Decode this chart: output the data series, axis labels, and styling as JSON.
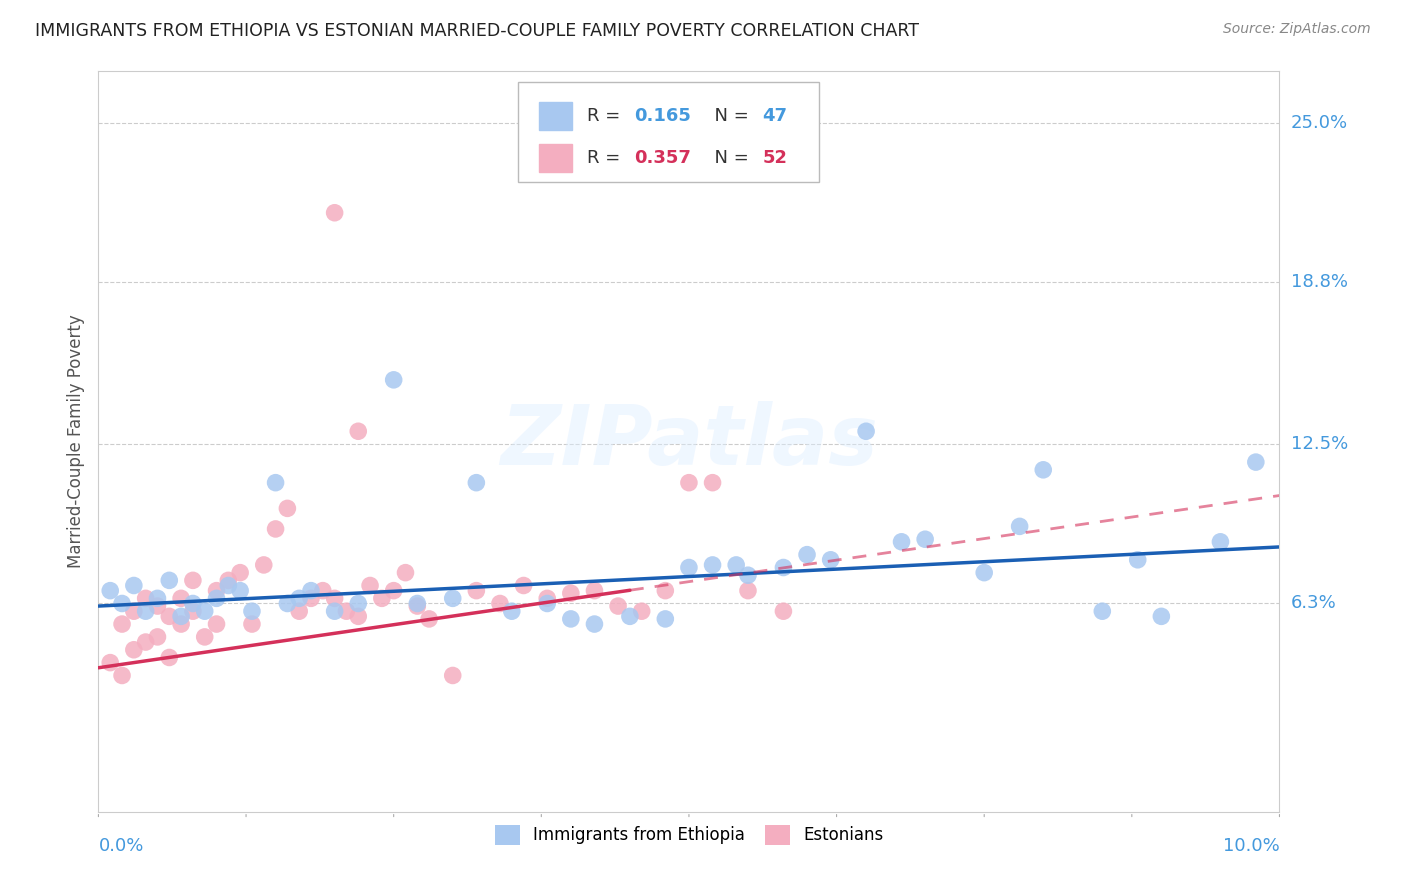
{
  "title": "IMMIGRANTS FROM ETHIOPIA VS ESTONIAN MARRIED-COUPLE FAMILY POVERTY CORRELATION CHART",
  "source": "Source: ZipAtlas.com",
  "ylabel": "Married-Couple Family Poverty",
  "xlim": [
    0.0,
    0.1
  ],
  "ylim": [
    -0.018,
    0.27
  ],
  "ytick_values": [
    0.063,
    0.125,
    0.188,
    0.25
  ],
  "ytick_labels": [
    "6.3%",
    "12.5%",
    "18.8%",
    "25.0%"
  ],
  "color_blue": "#a8c8f0",
  "color_pink": "#f4aec0",
  "line_blue": "#1a5fb4",
  "line_pink": "#d4305a",
  "R_eth_val": "0.165",
  "R_est_val": "0.357",
  "N_eth": "47",
  "N_est": "52",
  "eth_x": [
    0.001,
    0.002,
    0.003,
    0.004,
    0.005,
    0.006,
    0.007,
    0.008,
    0.009,
    0.01,
    0.011,
    0.012,
    0.013,
    0.015,
    0.016,
    0.017,
    0.018,
    0.02,
    0.022,
    0.025,
    0.027,
    0.03,
    0.032,
    0.035,
    0.038,
    0.04,
    0.042,
    0.045,
    0.048,
    0.05,
    0.052,
    0.054,
    0.055,
    0.058,
    0.06,
    0.062,
    0.065,
    0.068,
    0.07,
    0.075,
    0.078,
    0.08,
    0.085,
    0.088,
    0.09,
    0.095,
    0.098
  ],
  "eth_y": [
    0.068,
    0.063,
    0.07,
    0.06,
    0.065,
    0.072,
    0.058,
    0.063,
    0.06,
    0.065,
    0.07,
    0.068,
    0.06,
    0.11,
    0.063,
    0.065,
    0.068,
    0.06,
    0.063,
    0.15,
    0.063,
    0.065,
    0.11,
    0.06,
    0.063,
    0.057,
    0.055,
    0.058,
    0.057,
    0.077,
    0.078,
    0.078,
    0.074,
    0.077,
    0.082,
    0.08,
    0.13,
    0.087,
    0.088,
    0.075,
    0.093,
    0.115,
    0.06,
    0.08,
    0.058,
    0.087,
    0.118
  ],
  "est_x": [
    0.001,
    0.002,
    0.002,
    0.003,
    0.003,
    0.004,
    0.004,
    0.005,
    0.005,
    0.006,
    0.006,
    0.007,
    0.007,
    0.008,
    0.008,
    0.009,
    0.01,
    0.01,
    0.011,
    0.012,
    0.013,
    0.014,
    0.015,
    0.016,
    0.017,
    0.018,
    0.019,
    0.02,
    0.021,
    0.022,
    0.023,
    0.024,
    0.025,
    0.026,
    0.027,
    0.028,
    0.03,
    0.032,
    0.034,
    0.036,
    0.038,
    0.04,
    0.042,
    0.044,
    0.046,
    0.048,
    0.05,
    0.052,
    0.055,
    0.058,
    0.02,
    0.022
  ],
  "est_y": [
    0.04,
    0.035,
    0.055,
    0.045,
    0.06,
    0.048,
    0.065,
    0.05,
    0.062,
    0.042,
    0.058,
    0.055,
    0.065,
    0.06,
    0.072,
    0.05,
    0.055,
    0.068,
    0.072,
    0.075,
    0.055,
    0.078,
    0.092,
    0.1,
    0.06,
    0.065,
    0.068,
    0.065,
    0.06,
    0.058,
    0.07,
    0.065,
    0.068,
    0.075,
    0.062,
    0.057,
    0.035,
    0.068,
    0.063,
    0.07,
    0.065,
    0.067,
    0.068,
    0.062,
    0.06,
    0.068,
    0.11,
    0.11,
    0.068,
    0.06,
    0.215,
    0.13
  ],
  "trend_blue_x0": 0.0,
  "trend_blue_y0": 0.062,
  "trend_blue_x1": 0.1,
  "trend_blue_y1": 0.085,
  "trend_pink_x0": 0.0,
  "trend_pink_y0": 0.038,
  "trend_pink_x1": 0.1,
  "trend_pink_y1": 0.105,
  "trend_pink_dash_x0": 0.045,
  "trend_pink_dash_x1": 0.1
}
